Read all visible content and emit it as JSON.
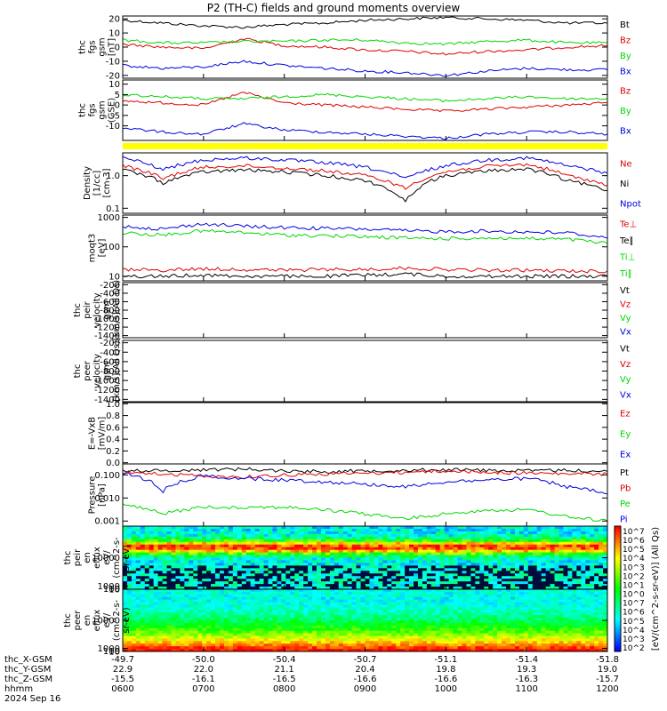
{
  "title": "P2 (TH-C) fields and ground moments overview",
  "colors": {
    "black": "#000000",
    "red": "#e00000",
    "green": "#00d800",
    "blue": "#0000e0",
    "yellow": "#ffff00"
  },
  "chart_data": [
    {
      "type": "line",
      "ylabel": [
        "thc",
        "fgs",
        "gsm",
        "[nT]"
      ],
      "yticks": [
        20,
        10,
        0,
        -10,
        -20
      ],
      "ylim": [
        -22,
        22
      ],
      "legend": [
        "Bt",
        "Bz",
        "By",
        "Bx"
      ],
      "legend_colors": [
        "black",
        "red",
        "green",
        "blue"
      ],
      "series": [
        {
          "name": "Bt",
          "color": "black",
          "x": [
            "0600",
            "0630",
            "0700",
            "0730",
            "0800",
            "0830",
            "0900",
            "0930",
            "1000",
            "1030",
            "1100",
            "1130",
            "1200"
          ],
          "values": [
            19,
            17,
            15,
            14,
            16,
            17,
            19,
            20,
            21,
            20,
            19,
            17,
            17
          ]
        },
        {
          "name": "Bz",
          "color": "red",
          "x": [
            "0600",
            "0630",
            "0700",
            "0730",
            "0800",
            "0830",
            "0900",
            "0930",
            "1000",
            "1030",
            "1100",
            "1130",
            "1200"
          ],
          "values": [
            2,
            0,
            -1,
            6,
            1,
            0,
            -2,
            -3,
            -5,
            -3,
            -2,
            0,
            1
          ]
        },
        {
          "name": "By",
          "color": "green",
          "x": [
            "0600",
            "0630",
            "0700",
            "0730",
            "0800",
            "0830",
            "0900",
            "0930",
            "1000",
            "1030",
            "1100",
            "1130",
            "1200"
          ],
          "values": [
            5,
            3,
            3,
            4,
            4,
            5,
            5,
            3,
            2,
            4,
            5,
            3,
            3
          ]
        },
        {
          "name": "Bx",
          "color": "blue",
          "x": [
            "0600",
            "0630",
            "0700",
            "0730",
            "0800",
            "0830",
            "0900",
            "0930",
            "1000",
            "1030",
            "1100",
            "1130",
            "1200"
          ],
          "values": [
            -13,
            -15,
            -14,
            -10,
            -13,
            -15,
            -17,
            -18,
            -20,
            -17,
            -15,
            -16,
            -16
          ]
        }
      ]
    },
    {
      "type": "line",
      "ylabel": [
        "thc",
        "fgs",
        "gsm",
        "(GSE)"
      ],
      "yticks": [
        10,
        5,
        0,
        -5,
        -10
      ],
      "ylim": [
        -17,
        12
      ],
      "legend": [
        "Bz",
        "By",
        "Bx"
      ],
      "legend_colors": [
        "red",
        "green",
        "blue"
      ],
      "series": [
        {
          "name": "Bz",
          "color": "red",
          "x": [
            "0600",
            "0630",
            "0700",
            "0730",
            "0800",
            "0830",
            "0900",
            "0930",
            "1000",
            "1030",
            "1100",
            "1130",
            "1200"
          ],
          "values": [
            2,
            1,
            0,
            6,
            1,
            0,
            -1,
            -2,
            -3,
            -2,
            -1,
            0,
            1
          ]
        },
        {
          "name": "By",
          "color": "green",
          "x": [
            "0600",
            "0630",
            "0700",
            "0730",
            "0800",
            "0830",
            "0900",
            "0930",
            "1000",
            "1030",
            "1100",
            "1130",
            "1200"
          ],
          "values": [
            5,
            4,
            3,
            3,
            4,
            5,
            4,
            3,
            2,
            3,
            4,
            3,
            3
          ]
        },
        {
          "name": "Bx",
          "color": "blue",
          "x": [
            "0600",
            "0630",
            "0700",
            "0730",
            "0800",
            "0830",
            "0900",
            "0930",
            "1000",
            "1030",
            "1100",
            "1130",
            "1200"
          ],
          "values": [
            -11,
            -13,
            -14,
            -9,
            -12,
            -13,
            -14,
            -15,
            -16,
            -14,
            -13,
            -13,
            -14
          ]
        }
      ]
    },
    {
      "type": "line",
      "scale": "log",
      "ylabel": [
        "Density",
        "[1/cc]",
        "[cm-3]"
      ],
      "yticks": [
        1.0,
        0.1
      ],
      "ytick_labels": [
        "1.0",
        "0.1"
      ],
      "ylim": [
        0.07,
        5
      ],
      "legend": [
        "Ne",
        "Ni",
        "Npot"
      ],
      "legend_colors": [
        "red",
        "black",
        "blue"
      ],
      "series": [
        {
          "name": "Npot",
          "color": "blue",
          "x": [
            "0600",
            "0630",
            "0700",
            "0730",
            "0800",
            "0830",
            "0900",
            "0930",
            "1000",
            "1030",
            "1100",
            "1130",
            "1200"
          ],
          "values": [
            3.5,
            1.5,
            3.0,
            3.5,
            3.0,
            2.5,
            1.8,
            0.8,
            2.0,
            3.0,
            3.5,
            2.0,
            1.2
          ]
        },
        {
          "name": "Ne",
          "color": "red",
          "x": [
            "0600",
            "0630",
            "0700",
            "0730",
            "0800",
            "0830",
            "0900",
            "0930",
            "1000",
            "1030",
            "1100",
            "1130",
            "1200"
          ],
          "values": [
            2.0,
            0.8,
            1.8,
            2.0,
            1.7,
            1.4,
            1.0,
            0.4,
            1.3,
            1.9,
            2.2,
            1.0,
            0.5
          ]
        },
        {
          "name": "Ni",
          "color": "black",
          "x": [
            "0600",
            "0630",
            "0700",
            "0730",
            "0800",
            "0830",
            "0900",
            "0930",
            "1000",
            "1030",
            "1100",
            "1130",
            "1200"
          ],
          "values": [
            1.5,
            0.6,
            1.3,
            1.5,
            1.3,
            1.0,
            0.7,
            0.15,
            1.0,
            1.4,
            1.6,
            0.7,
            0.35
          ]
        }
      ]
    },
    {
      "type": "line",
      "scale": "log",
      "ylabel": [
        "moqt3",
        "[eV]"
      ],
      "yticks": [
        1000,
        100,
        10
      ],
      "ytick_labels": [
        "1000",
        "100",
        "10"
      ],
      "ylim": [
        7,
        1200
      ],
      "legend": [
        "Te⊥",
        "Te∥",
        "Ti⊥",
        "Ti∥"
      ],
      "legend_colors": [
        "red",
        "black",
        "green",
        "green"
      ],
      "series": [
        {
          "name": "Ti⊥",
          "color": "blue",
          "x": [
            "0600",
            "0630",
            "0700",
            "0730",
            "0800",
            "0830",
            "0900",
            "0930",
            "1000",
            "1030",
            "1100",
            "1130",
            "1200"
          ],
          "values": [
            500,
            400,
            600,
            500,
            450,
            420,
            400,
            350,
            330,
            340,
            320,
            300,
            200
          ]
        },
        {
          "name": "Ti∥",
          "color": "green",
          "x": [
            "0600",
            "0630",
            "0700",
            "0730",
            "0800",
            "0830",
            "0900",
            "0930",
            "1000",
            "1030",
            "1100",
            "1130",
            "1200"
          ],
          "values": [
            300,
            250,
            350,
            300,
            250,
            240,
            220,
            200,
            190,
            200,
            190,
            180,
            130
          ]
        },
        {
          "name": "Te⊥",
          "color": "red",
          "x": [
            "0600",
            "0630",
            "0700",
            "0730",
            "0800",
            "0830",
            "0900",
            "0930",
            "1000",
            "1030",
            "1100",
            "1130",
            "1200"
          ],
          "values": [
            17,
            16,
            18,
            17,
            16,
            17,
            17,
            19,
            17,
            16,
            16,
            15,
            15
          ]
        },
        {
          "name": "Te∥",
          "color": "black",
          "x": [
            "0600",
            "0630",
            "0700",
            "0730",
            "0800",
            "0830",
            "0900",
            "0930",
            "1000",
            "1030",
            "1100",
            "1130",
            "1200"
          ],
          "values": [
            10,
            10,
            11,
            10,
            10,
            10,
            11,
            12,
            10,
            10,
            10,
            10,
            10
          ]
        }
      ]
    },
    {
      "type": "line",
      "ylabel": [
        "thc",
        "peir",
        "velocity",
        "gsm",
        "[km/s](All Qs)"
      ],
      "yticks": [
        -200,
        -400,
        -600,
        -800,
        -1000,
        -1200,
        -1400
      ],
      "ylim": [
        -1450,
        -150
      ],
      "legend": [
        "Vt",
        "Vz",
        "Vy",
        "Vx"
      ],
      "legend_colors": [
        "black",
        "red",
        "green",
        "blue"
      ],
      "series": []
    },
    {
      "type": "line",
      "ylabel": [
        "thc",
        "peer",
        "velocity",
        "gsm",
        "[km/s](All Qs)"
      ],
      "yticks": [
        -200,
        -400,
        -600,
        -800,
        -1000,
        -1200,
        -1400
      ],
      "ylim": [
        -1450,
        -150
      ],
      "legend": [
        "Vt",
        "Vz",
        "Vy",
        "Vx"
      ],
      "legend_colors": [
        "black",
        "red",
        "green",
        "blue"
      ],
      "series": []
    },
    {
      "type": "line",
      "ylabel": [
        "E=-VxB",
        "[mV/m]"
      ],
      "yticks": [
        1.0,
        0.8,
        0.6,
        0.4,
        0.2,
        0.0
      ],
      "ytick_labels": [
        "1.0",
        "0.8",
        "0.6",
        "0.4",
        "0.2",
        "0.0"
      ],
      "ylim": [
        -0.02,
        1.02
      ],
      "legend": [
        "Ez",
        "Ey",
        "Ex"
      ],
      "legend_colors": [
        "red",
        "green",
        "blue"
      ],
      "series": []
    },
    {
      "type": "line",
      "scale": "log",
      "ylabel": [
        "Pressure",
        "[nPa]"
      ],
      "yticks": [
        0.1,
        0.01,
        0.001
      ],
      "ytick_labels": [
        "0.100",
        "0.010",
        "0.001"
      ],
      "ylim": [
        0.0006,
        0.3
      ],
      "legend": [
        "Pt",
        "Pb",
        "Pe",
        "Pi"
      ],
      "legend_colors": [
        "black",
        "red",
        "green",
        "blue"
      ],
      "series": [
        {
          "name": "Pt",
          "color": "black",
          "x": [
            "0600",
            "0630",
            "0700",
            "0730",
            "0800",
            "0830",
            "0900",
            "0930",
            "1000",
            "1030",
            "1100",
            "1130",
            "1200"
          ],
          "values": [
            0.16,
            0.15,
            0.17,
            0.18,
            0.15,
            0.14,
            0.15,
            0.16,
            0.17,
            0.16,
            0.15,
            0.16,
            0.14
          ]
        },
        {
          "name": "Pb",
          "color": "red",
          "x": [
            "0600",
            "0630",
            "0700",
            "0730",
            "0800",
            "0830",
            "0900",
            "0930",
            "1000",
            "1030",
            "1100",
            "1130",
            "1200"
          ],
          "values": [
            0.13,
            0.11,
            0.09,
            0.08,
            0.1,
            0.11,
            0.12,
            0.13,
            0.15,
            0.13,
            0.12,
            0.11,
            0.11
          ]
        },
        {
          "name": "Pi",
          "color": "blue",
          "x": [
            "0600",
            "0630",
            "0700",
            "0730",
            "0800",
            "0830",
            "0900",
            "0930",
            "1000",
            "1030",
            "1100",
            "1130",
            "1200"
          ],
          "values": [
            0.12,
            0.02,
            0.09,
            0.07,
            0.06,
            0.05,
            0.04,
            0.03,
            0.05,
            0.06,
            0.07,
            0.03,
            0.015
          ]
        },
        {
          "name": "Pe",
          "color": "green",
          "x": [
            "0600",
            "0630",
            "0700",
            "0730",
            "0800",
            "0830",
            "0900",
            "0930",
            "1000",
            "1030",
            "1100",
            "1130",
            "1200"
          ],
          "values": [
            0.005,
            0.002,
            0.004,
            0.004,
            0.004,
            0.003,
            0.002,
            0.0012,
            0.002,
            0.003,
            0.003,
            0.0015,
            0.001
          ]
        }
      ]
    },
    {
      "type": "heatmap",
      "ylabel": [
        "thc",
        "peir",
        "en",
        "eflux",
        "eV/",
        "(cm^2-s-",
        "sr-eV)"
      ],
      "yticks": [
        10000,
        1000,
        100,
        10
      ],
      "ytick_labels": [
        "10000",
        "1000",
        "100",
        "10"
      ],
      "ylim": [
        5,
        20000
      ]
    },
    {
      "type": "heatmap",
      "ylabel": [
        "thc",
        "peer",
        "en",
        "eflux",
        "eV/",
        "(cm^2-s-",
        "sr-eV)"
      ],
      "yticks": [
        10000,
        1000,
        100,
        10
      ],
      "ytick_labels": [
        "10000",
        "1000",
        "100",
        "10"
      ],
      "ylim": [
        5,
        20000
      ]
    }
  ],
  "colorbar": {
    "label": "[eV/(cm^2-s-sr-eV)] (All Qs)",
    "ticks": [
      "10^7",
      "10^6",
      "10^5",
      "10^4",
      "10^3",
      "10^2",
      "10^1",
      "10^0",
      "10^7",
      "10^6",
      "10^5",
      "10^4",
      "10^3",
      "10^2"
    ]
  },
  "x_axis": {
    "row_labels": [
      "thc_X-GSM",
      "thc_Y-GSM",
      "thc_Z-GSM",
      "hhmm",
      "2024 Sep 16"
    ],
    "ticks": [
      {
        "x": "-49.7",
        "y": "22.9",
        "z": "-15.5",
        "t": "0600"
      },
      {
        "x": "-50.0",
        "y": "22.0",
        "z": "-16.1",
        "t": "0700"
      },
      {
        "x": "-50.4",
        "y": "21.1",
        "z": "-16.5",
        "t": "0800"
      },
      {
        "x": "-50.7",
        "y": "20.4",
        "z": "-16.6",
        "t": "0900"
      },
      {
        "x": "-51.1",
        "y": "19.8",
        "z": "-16.6",
        "t": "1000"
      },
      {
        "x": "-51.4",
        "y": "19.3",
        "z": "-16.3",
        "t": "1100"
      },
      {
        "x": "-51.8",
        "y": "19.0",
        "z": "-15.7",
        "t": "1200"
      }
    ]
  }
}
